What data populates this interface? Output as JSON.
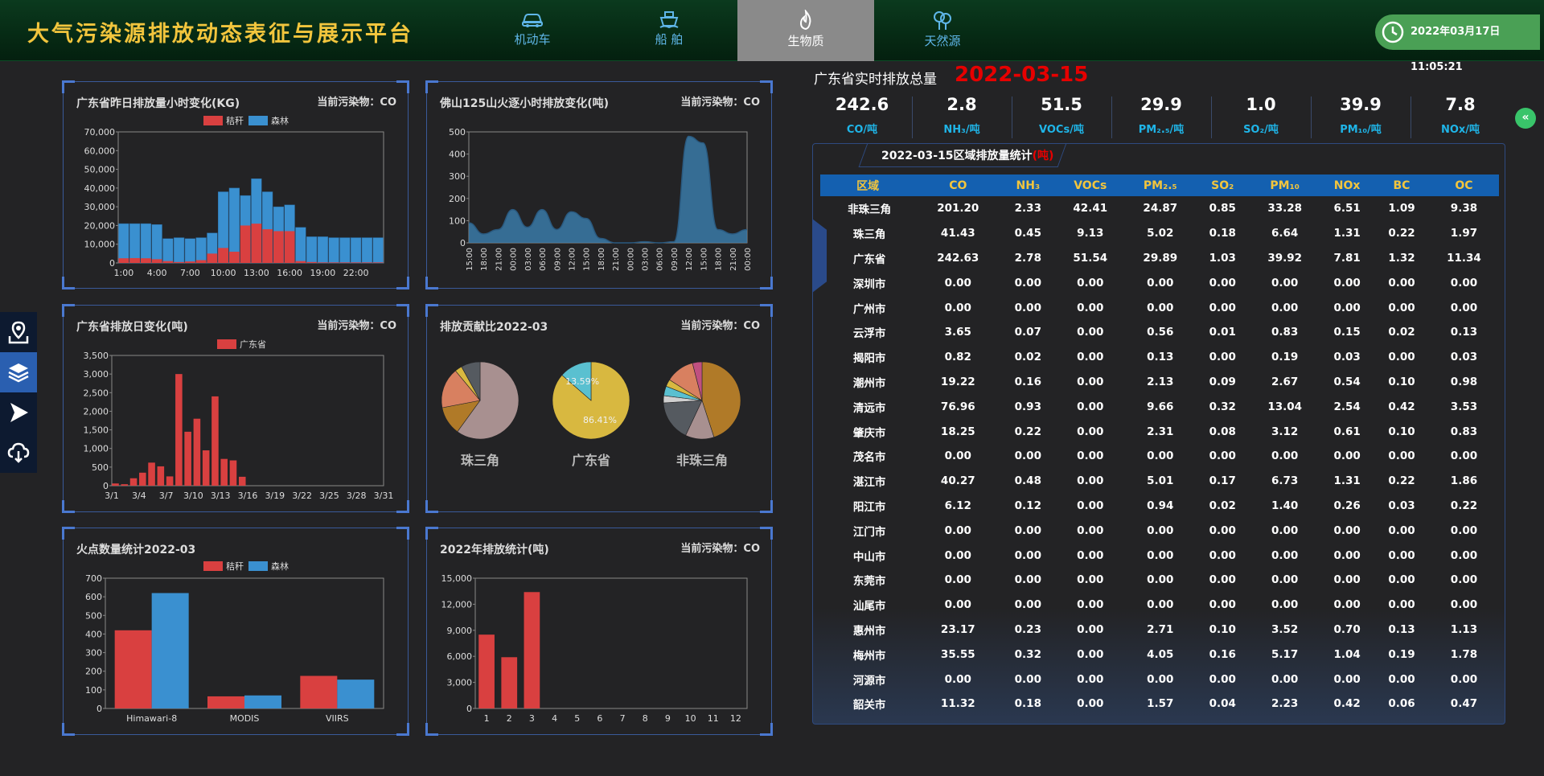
{
  "app": {
    "title": "大气污染源排放动态表征与展示平台",
    "datetime": "2022年03月17日 11:05:21"
  },
  "nav": [
    {
      "label": "机动车",
      "icon": "car-icon",
      "active": false
    },
    {
      "label": "船 舶",
      "icon": "ship-icon",
      "active": false
    },
    {
      "label": "生物质",
      "icon": "flame-icon",
      "active": true
    },
    {
      "label": "天然源",
      "icon": "tree-icon",
      "active": false
    }
  ],
  "sidebar": [
    "map-pin-icon",
    "layers-icon",
    "cursor-icon",
    "cloud-download-icon"
  ],
  "panels": {
    "hourly": {
      "title": "广东省昨日排放量小时变化(KG)",
      "pollutant": "当前污染物：CO"
    },
    "fire": {
      "title": "佛山125山火逐小时排放变化(吨)",
      "pollutant": "当前污染物：CO"
    },
    "daily": {
      "title": "广东省排放日变化(吨)",
      "pollutant": "当前污染物：CO"
    },
    "contrib": {
      "title": "排放贡献比2022-03",
      "pollutant": "当前污染物：CO"
    },
    "hotspot": {
      "title": "火点数量统计2022-03",
      "pollutant": ""
    },
    "yearly": {
      "title": "2022年排放统计(吨)",
      "pollutant": "当前污染物：CO"
    }
  },
  "chart_data": [
    {
      "id": "hourly",
      "type": "bar",
      "title": "广东省昨日排放量小时变化(KG)",
      "categories": [
        "1:00",
        "2:00",
        "3:00",
        "4:00",
        "5:00",
        "6:00",
        "7:00",
        "8:00",
        "9:00",
        "10:00",
        "11:00",
        "12:00",
        "13:00",
        "14:00",
        "15:00",
        "16:00",
        "17:00",
        "18:00",
        "19:00",
        "20:00",
        "21:00",
        "22:00",
        "23:00",
        "24:00"
      ],
      "tick_labels": [
        "1:00",
        "4:00",
        "7:00",
        "10:00",
        "13:00",
        "16:00",
        "19:00",
        "22:00"
      ],
      "series": [
        {
          "name": "秸秆",
          "color": "#d94040",
          "values": [
            2500,
            2600,
            2500,
            2000,
            1000,
            500,
            800,
            1500,
            5000,
            8000,
            6000,
            20000,
            21000,
            18000,
            17000,
            17000,
            1000,
            500,
            300,
            300,
            300,
            300,
            300,
            300
          ]
        },
        {
          "name": "森林",
          "color": "#3a90d0",
          "values": [
            21000,
            21000,
            21000,
            20500,
            13000,
            13500,
            13000,
            13500,
            16000,
            38000,
            40000,
            36000,
            45000,
            38000,
            30000,
            31000,
            19000,
            14000,
            14000,
            13500,
            13500,
            13500,
            13500,
            13500
          ]
        }
      ],
      "ylim": [
        0,
        70000
      ],
      "yticks": [
        "70,000",
        "60,000",
        "50,000",
        "40,000",
        "30,000",
        "20,000",
        "10,000",
        "0"
      ]
    },
    {
      "id": "fire",
      "type": "area",
      "title": "佛山125山火逐小时排放变化(吨)",
      "x": [
        "15:00",
        "18:00",
        "21:00",
        "00:00",
        "03:00",
        "06:00",
        "09:00",
        "12:00",
        "15:00",
        "18:00",
        "21:00",
        "00:00",
        "03:00",
        "06:00",
        "09:00",
        "12:00",
        "15:00",
        "18:00",
        "21:00",
        "00:00"
      ],
      "values": [
        90,
        40,
        60,
        150,
        70,
        150,
        60,
        140,
        110,
        20,
        0,
        0,
        5,
        0,
        5,
        480,
        450,
        60,
        40,
        60
      ],
      "ylim": [
        0,
        500
      ],
      "yticks": [
        "500",
        "400",
        "300",
        "200",
        "100",
        "0"
      ]
    },
    {
      "id": "daily",
      "type": "bar",
      "title": "广东省排放日变化(吨)",
      "legend": "广东省",
      "categories": [
        "3/1",
        "3/2",
        "3/3",
        "3/4",
        "3/5",
        "3/6",
        "3/7",
        "3/8",
        "3/9",
        "3/10",
        "3/11",
        "3/12",
        "3/13",
        "3/14",
        "3/15",
        "3/16",
        "3/17",
        "3/18",
        "3/19",
        "3/20",
        "3/21",
        "3/22",
        "3/23",
        "3/24",
        "3/25",
        "3/26",
        "3/27",
        "3/28",
        "3/29",
        "3/30",
        "3/31"
      ],
      "tick_labels": [
        "3/1",
        "3/4",
        "3/7",
        "3/10",
        "3/13",
        "3/16",
        "3/19",
        "3/22",
        "3/25",
        "3/28",
        "3/31"
      ],
      "values": [
        60,
        40,
        200,
        350,
        620,
        520,
        250,
        3000,
        1450,
        1800,
        950,
        2400,
        720,
        680,
        240,
        0,
        0,
        0,
        0,
        0,
        0,
        0,
        0,
        0,
        0,
        0,
        0,
        0,
        0,
        0,
        0
      ],
      "ylim": [
        0,
        3500
      ],
      "yticks": [
        "3,500",
        "3,000",
        "2,500",
        "2,000",
        "1,500",
        "1,000",
        "500",
        "0"
      ]
    },
    {
      "id": "contrib",
      "type": "pie",
      "title": "排放贡献比2022-03",
      "pies": [
        {
          "label": "珠三角",
          "slices": [
            {
              "value": 60,
              "color": "#a89090"
            },
            {
              "value": 12,
              "color": "#b07a28"
            },
            {
              "value": 17,
              "color": "#d88060"
            },
            {
              "value": 3,
              "color": "#d8b840"
            },
            {
              "value": 8,
              "color": "#555a60"
            }
          ]
        },
        {
          "label": "广东省",
          "slices": [
            {
              "value": 86.41,
              "color": "#d8b840",
              "text": "86.41%"
            },
            {
              "value": 13.59,
              "color": "#5ac0d0",
              "text": "13.59%"
            }
          ]
        },
        {
          "label": "非珠三角",
          "slices": [
            {
              "value": 45,
              "color": "#b07a28"
            },
            {
              "value": 12,
              "color": "#a89090"
            },
            {
              "value": 17,
              "color": "#555a60"
            },
            {
              "value": 3,
              "color": "#d0d0d0"
            },
            {
              "value": 4,
              "color": "#5ac0d0"
            },
            {
              "value": 3,
              "color": "#d8b840"
            },
            {
              "value": 12,
              "color": "#d88060"
            },
            {
              "value": 4,
              "color": "#c05080"
            }
          ]
        }
      ]
    },
    {
      "id": "hotspot",
      "type": "bar",
      "title": "火点数量统计2022-03",
      "categories": [
        "Himawari-8",
        "MODIS",
        "VIIRS"
      ],
      "series": [
        {
          "name": "秸秆",
          "color": "#d94040",
          "values": [
            420,
            65,
            175
          ]
        },
        {
          "name": "森林",
          "color": "#3a90d0",
          "values": [
            620,
            70,
            155
          ]
        }
      ],
      "ylim": [
        0,
        700
      ],
      "yticks": [
        "700",
        "600",
        "500",
        "400",
        "300",
        "200",
        "100",
        "0"
      ]
    },
    {
      "id": "yearly",
      "type": "bar",
      "title": "2022年排放统计(吨)",
      "categories": [
        "1",
        "2",
        "3",
        "4",
        "5",
        "6",
        "7",
        "8",
        "9",
        "10",
        "11",
        "12"
      ],
      "values": [
        8500,
        5900,
        13400,
        0,
        0,
        0,
        0,
        0,
        0,
        0,
        0,
        0
      ],
      "ylim": [
        0,
        15000
      ],
      "yticks": [
        "15,000",
        "12,000",
        "9,000",
        "6,000",
        "3,000",
        "0"
      ]
    }
  ],
  "totals": {
    "title": "广东省实时排放总量",
    "date": "2022-03-15",
    "items": [
      {
        "value": "242.6",
        "unit": "CO/吨"
      },
      {
        "value": "2.8",
        "unit": "NH₃/吨"
      },
      {
        "value": "51.5",
        "unit": "VOCs/吨"
      },
      {
        "value": "29.9",
        "unit": "PM₂.₅/吨"
      },
      {
        "value": "1.0",
        "unit": "SO₂/吨"
      },
      {
        "value": "39.9",
        "unit": "PM₁₀/吨"
      },
      {
        "value": "7.8",
        "unit": "NOx/吨"
      }
    ]
  },
  "region": {
    "title": "2022-03-15区域排放量统计",
    "unit": "(吨)",
    "headers": [
      "区域",
      "CO",
      "NH₃",
      "VOCs",
      "PM₂.₅",
      "SO₂",
      "PM₁₀",
      "NOx",
      "BC",
      "OC"
    ],
    "rows": [
      [
        "非珠三角",
        "201.20",
        "2.33",
        "42.41",
        "24.87",
        "0.85",
        "33.28",
        "6.51",
        "1.09",
        "9.38"
      ],
      [
        "珠三角",
        "41.43",
        "0.45",
        "9.13",
        "5.02",
        "0.18",
        "6.64",
        "1.31",
        "0.22",
        "1.97"
      ],
      [
        "广东省",
        "242.63",
        "2.78",
        "51.54",
        "29.89",
        "1.03",
        "39.92",
        "7.81",
        "1.32",
        "11.34"
      ],
      [
        "深圳市",
        "0.00",
        "0.00",
        "0.00",
        "0.00",
        "0.00",
        "0.00",
        "0.00",
        "0.00",
        "0.00"
      ],
      [
        "广州市",
        "0.00",
        "0.00",
        "0.00",
        "0.00",
        "0.00",
        "0.00",
        "0.00",
        "0.00",
        "0.00"
      ],
      [
        "云浮市",
        "3.65",
        "0.07",
        "0.00",
        "0.56",
        "0.01",
        "0.83",
        "0.15",
        "0.02",
        "0.13"
      ],
      [
        "揭阳市",
        "0.82",
        "0.02",
        "0.00",
        "0.13",
        "0.00",
        "0.19",
        "0.03",
        "0.00",
        "0.03"
      ],
      [
        "潮州市",
        "19.22",
        "0.16",
        "0.00",
        "2.13",
        "0.09",
        "2.67",
        "0.54",
        "0.10",
        "0.98"
      ],
      [
        "清远市",
        "76.96",
        "0.93",
        "0.00",
        "9.66",
        "0.32",
        "13.04",
        "2.54",
        "0.42",
        "3.53"
      ],
      [
        "肇庆市",
        "18.25",
        "0.22",
        "0.00",
        "2.31",
        "0.08",
        "3.12",
        "0.61",
        "0.10",
        "0.83"
      ],
      [
        "茂名市",
        "0.00",
        "0.00",
        "0.00",
        "0.00",
        "0.00",
        "0.00",
        "0.00",
        "0.00",
        "0.00"
      ],
      [
        "湛江市",
        "40.27",
        "0.48",
        "0.00",
        "5.01",
        "0.17",
        "6.73",
        "1.31",
        "0.22",
        "1.86"
      ],
      [
        "阳江市",
        "6.12",
        "0.12",
        "0.00",
        "0.94",
        "0.02",
        "1.40",
        "0.26",
        "0.03",
        "0.22"
      ],
      [
        "江门市",
        "0.00",
        "0.00",
        "0.00",
        "0.00",
        "0.00",
        "0.00",
        "0.00",
        "0.00",
        "0.00"
      ],
      [
        "中山市",
        "0.00",
        "0.00",
        "0.00",
        "0.00",
        "0.00",
        "0.00",
        "0.00",
        "0.00",
        "0.00"
      ],
      [
        "东莞市",
        "0.00",
        "0.00",
        "0.00",
        "0.00",
        "0.00",
        "0.00",
        "0.00",
        "0.00",
        "0.00"
      ],
      [
        "汕尾市",
        "0.00",
        "0.00",
        "0.00",
        "0.00",
        "0.00",
        "0.00",
        "0.00",
        "0.00",
        "0.00"
      ],
      [
        "惠州市",
        "23.17",
        "0.23",
        "0.00",
        "2.71",
        "0.10",
        "3.52",
        "0.70",
        "0.13",
        "1.13"
      ],
      [
        "梅州市",
        "35.55",
        "0.32",
        "0.00",
        "4.05",
        "0.16",
        "5.17",
        "1.04",
        "0.19",
        "1.78"
      ],
      [
        "河源市",
        "0.00",
        "0.00",
        "0.00",
        "0.00",
        "0.00",
        "0.00",
        "0.00",
        "0.00",
        "0.00"
      ],
      [
        "韶关市",
        "11.32",
        "0.18",
        "0.00",
        "1.57",
        "0.04",
        "2.23",
        "0.42",
        "0.06",
        "0.47"
      ]
    ]
  },
  "collapse_label": "«"
}
